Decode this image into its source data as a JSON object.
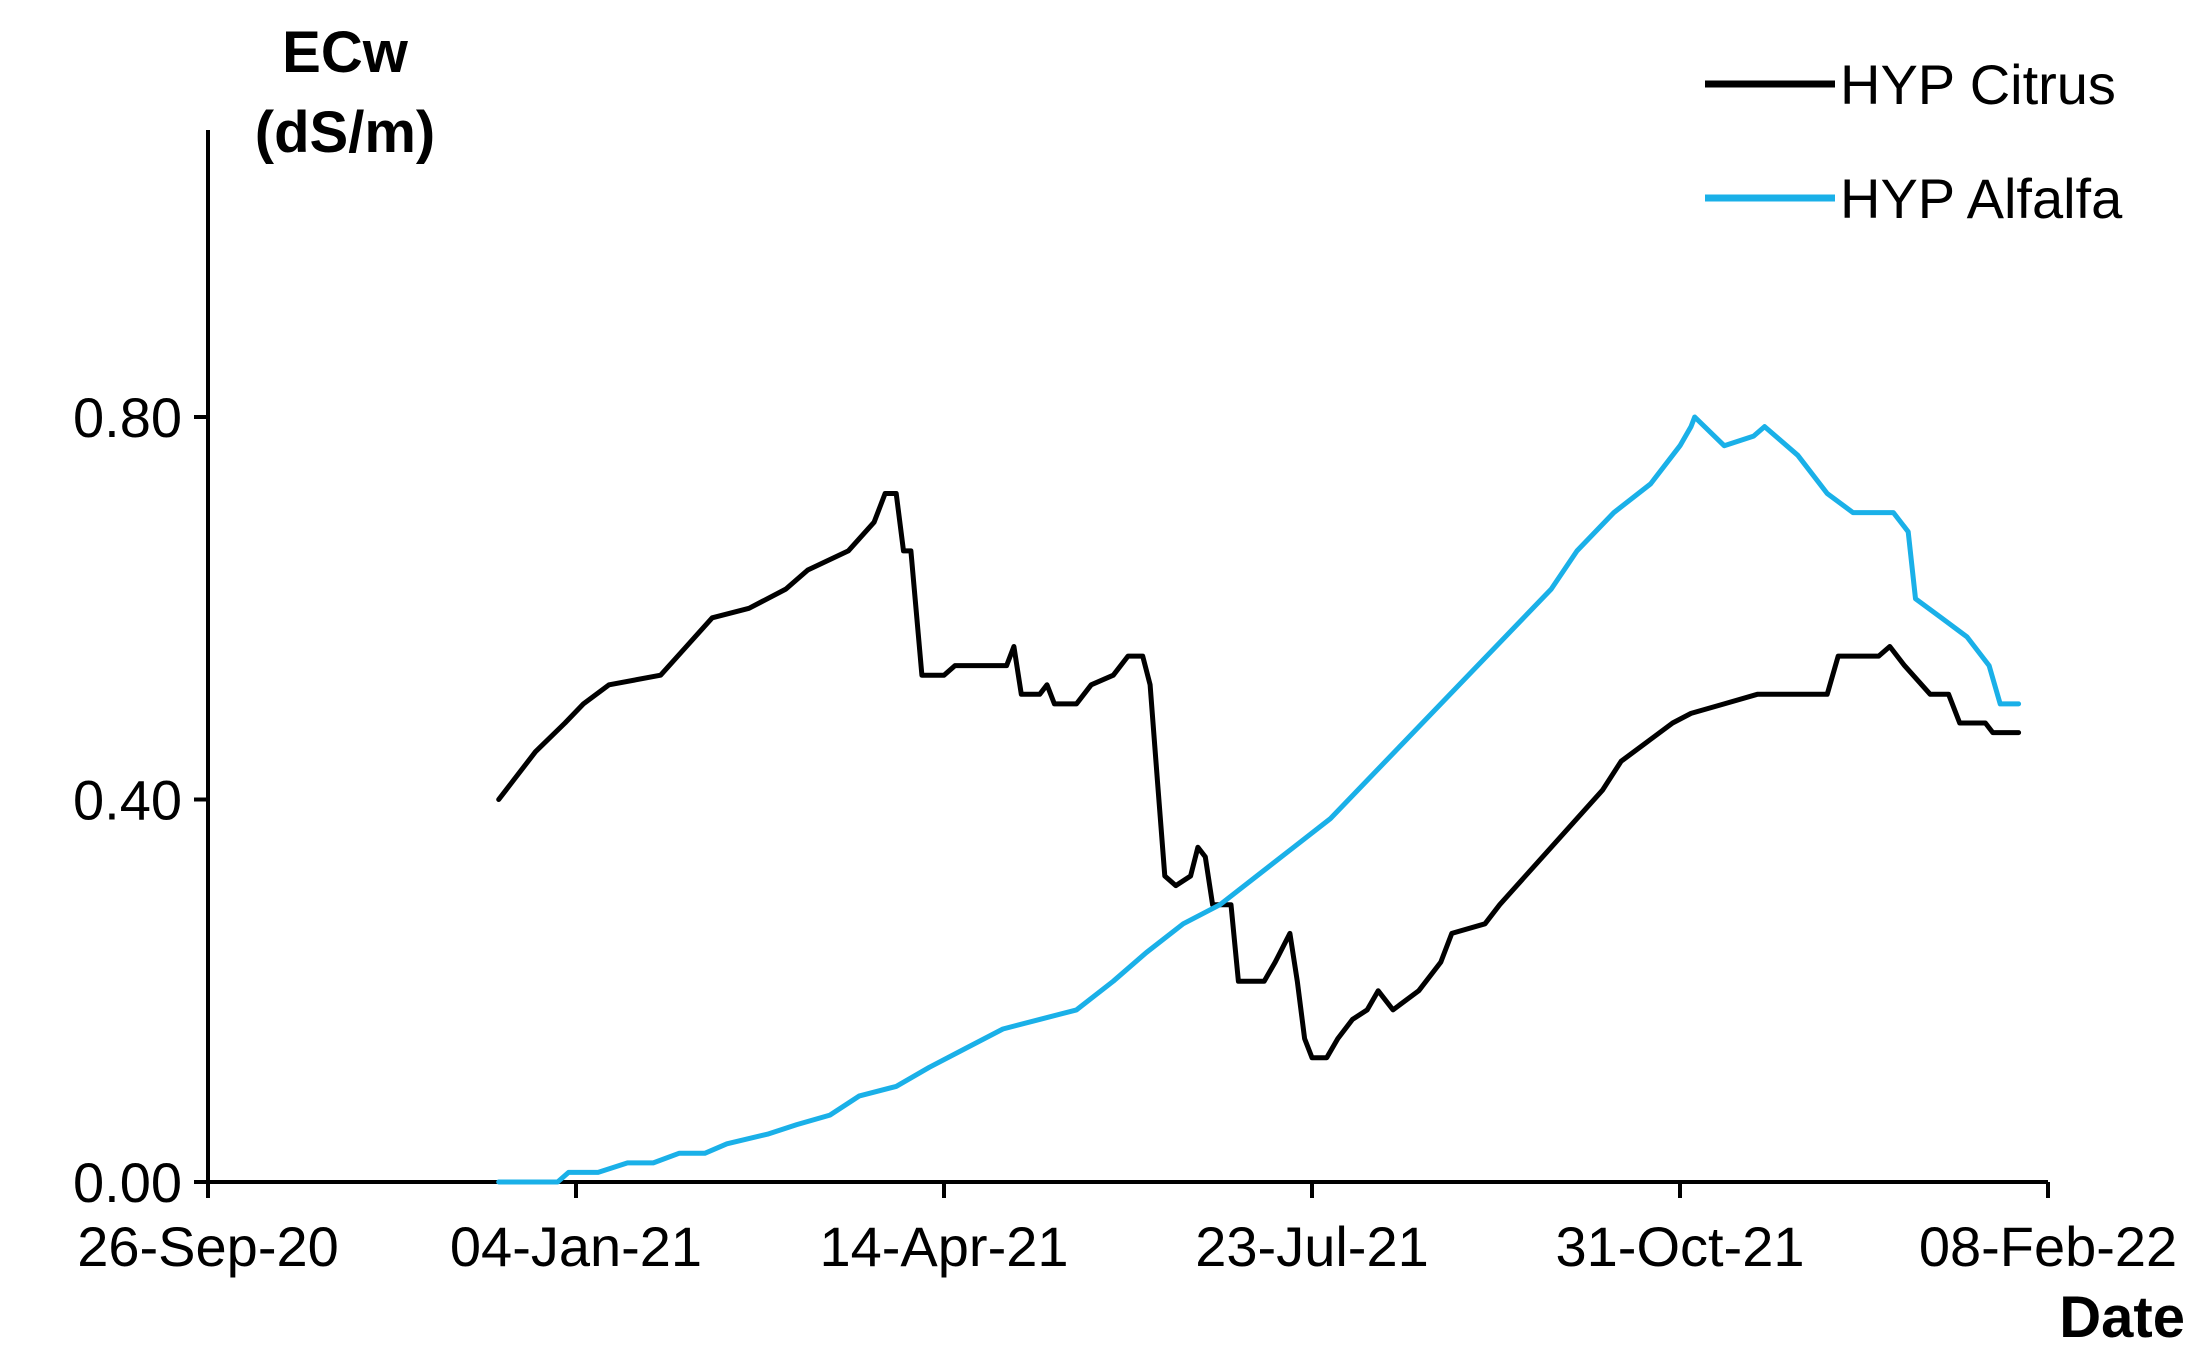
{
  "chart_data": {
    "type": "line",
    "title": "",
    "ylabel": [
      "ECw",
      "(dS/m)"
    ],
    "xlabel": "Date",
    "ylim": [
      0,
      1.0
    ],
    "yticks": [
      0.0,
      0.4,
      0.8
    ],
    "ytick_labels": [
      "0.00",
      "0.40",
      "0.80"
    ],
    "xlim": [
      "2020-09-26",
      "2022-02-08"
    ],
    "xticks": [
      "2020-09-26",
      "2021-01-04",
      "2021-04-14",
      "2021-07-23",
      "2021-10-31",
      "2022-02-08"
    ],
    "xtick_labels": [
      "26-Sep-20",
      "04-Jan-21",
      "14-Apr-21",
      "23-Jul-21",
      "31-Oct-21",
      "08-Feb-22"
    ],
    "grid": false,
    "legend_position": "top-right",
    "series": [
      {
        "name": "HYP Citrus",
        "color": "#000000",
        "points": [
          [
            "2020-12-14",
            0.4
          ],
          [
            "2020-12-18",
            0.42
          ],
          [
            "2020-12-24",
            0.45
          ],
          [
            "2021-01-01",
            0.48
          ],
          [
            "2021-01-06",
            0.5
          ],
          [
            "2021-01-13",
            0.52
          ],
          [
            "2021-01-27",
            0.53
          ],
          [
            "2021-02-03",
            0.56
          ],
          [
            "2021-02-10",
            0.59
          ],
          [
            "2021-02-20",
            0.6
          ],
          [
            "2021-03-02",
            0.62
          ],
          [
            "2021-03-08",
            0.64
          ],
          [
            "2021-03-19",
            0.66
          ],
          [
            "2021-03-26",
            0.69
          ],
          [
            "2021-03-29",
            0.72
          ],
          [
            "2021-04-01",
            0.72
          ],
          [
            "2021-04-03",
            0.66
          ],
          [
            "2021-04-05",
            0.66
          ],
          [
            "2021-04-08",
            0.53
          ],
          [
            "2021-04-14",
            0.53
          ],
          [
            "2021-04-17",
            0.54
          ],
          [
            "2021-05-01",
            0.54
          ],
          [
            "2021-05-03",
            0.56
          ],
          [
            "2021-05-05",
            0.51
          ],
          [
            "2021-05-10",
            0.51
          ],
          [
            "2021-05-12",
            0.52
          ],
          [
            "2021-05-14",
            0.5
          ],
          [
            "2021-05-20",
            0.5
          ],
          [
            "2021-05-24",
            0.52
          ],
          [
            "2021-05-30",
            0.53
          ],
          [
            "2021-06-03",
            0.55
          ],
          [
            "2021-06-07",
            0.55
          ],
          [
            "2021-06-09",
            0.52
          ],
          [
            "2021-06-11",
            0.42
          ],
          [
            "2021-06-13",
            0.32
          ],
          [
            "2021-06-16",
            0.31
          ],
          [
            "2021-06-20",
            0.32
          ],
          [
            "2021-06-22",
            0.35
          ],
          [
            "2021-06-24",
            0.34
          ],
          [
            "2021-06-26",
            0.29
          ],
          [
            "2021-07-01",
            0.29
          ],
          [
            "2021-07-03",
            0.21
          ],
          [
            "2021-07-10",
            0.21
          ],
          [
            "2021-07-13",
            0.23
          ],
          [
            "2021-07-17",
            0.26
          ],
          [
            "2021-07-19",
            0.21
          ],
          [
            "2021-07-21",
            0.15
          ],
          [
            "2021-07-23",
            0.13
          ],
          [
            "2021-07-27",
            0.13
          ],
          [
            "2021-07-30",
            0.15
          ],
          [
            "2021-08-03",
            0.17
          ],
          [
            "2021-08-07",
            0.18
          ],
          [
            "2021-08-10",
            0.2
          ],
          [
            "2021-08-14",
            0.18
          ],
          [
            "2021-08-21",
            0.2
          ],
          [
            "2021-08-27",
            0.23
          ],
          [
            "2021-08-30",
            0.26
          ],
          [
            "2021-09-08",
            0.27
          ],
          [
            "2021-09-12",
            0.29
          ],
          [
            "2021-09-19",
            0.32
          ],
          [
            "2021-09-26",
            0.35
          ],
          [
            "2021-10-03",
            0.38
          ],
          [
            "2021-10-10",
            0.41
          ],
          [
            "2021-10-15",
            0.44
          ],
          [
            "2021-10-22",
            0.46
          ],
          [
            "2021-10-29",
            0.48
          ],
          [
            "2021-11-03",
            0.49
          ],
          [
            "2021-11-12",
            0.5
          ],
          [
            "2021-11-21",
            0.51
          ],
          [
            "2021-12-10",
            0.51
          ],
          [
            "2021-12-13",
            0.55
          ],
          [
            "2021-12-24",
            0.55
          ],
          [
            "2021-12-27",
            0.56
          ],
          [
            "2021-12-31",
            0.54
          ],
          [
            "2022-01-07",
            0.51
          ],
          [
            "2022-01-12",
            0.51
          ],
          [
            "2022-01-15",
            0.48
          ],
          [
            "2022-01-22",
            0.48
          ],
          [
            "2022-01-24",
            0.47
          ],
          [
            "2022-01-31",
            0.47
          ]
        ]
      },
      {
        "name": "HYP Alfalfa",
        "color": "#1AB0E8",
        "points": [
          [
            "2020-12-14",
            0.0
          ],
          [
            "2020-12-30",
            0.0
          ],
          [
            "2021-01-02",
            0.01
          ],
          [
            "2021-01-10",
            0.01
          ],
          [
            "2021-01-18",
            0.02
          ],
          [
            "2021-01-25",
            0.02
          ],
          [
            "2021-02-01",
            0.03
          ],
          [
            "2021-02-08",
            0.03
          ],
          [
            "2021-02-14",
            0.04
          ],
          [
            "2021-02-25",
            0.05
          ],
          [
            "2021-03-05",
            0.06
          ],
          [
            "2021-03-14",
            0.07
          ],
          [
            "2021-03-22",
            0.09
          ],
          [
            "2021-04-01",
            0.1
          ],
          [
            "2021-04-10",
            0.12
          ],
          [
            "2021-04-20",
            0.14
          ],
          [
            "2021-04-30",
            0.16
          ],
          [
            "2021-05-10",
            0.17
          ],
          [
            "2021-05-20",
            0.18
          ],
          [
            "2021-05-30",
            0.21
          ],
          [
            "2021-06-08",
            0.24
          ],
          [
            "2021-06-18",
            0.27
          ],
          [
            "2021-06-28",
            0.29
          ],
          [
            "2021-07-08",
            0.32
          ],
          [
            "2021-07-18",
            0.35
          ],
          [
            "2021-07-28",
            0.38
          ],
          [
            "2021-08-07",
            0.42
          ],
          [
            "2021-08-17",
            0.46
          ],
          [
            "2021-08-27",
            0.5
          ],
          [
            "2021-09-06",
            0.54
          ],
          [
            "2021-09-16",
            0.58
          ],
          [
            "2021-09-26",
            0.62
          ],
          [
            "2021-10-03",
            0.66
          ],
          [
            "2021-10-13",
            0.7
          ],
          [
            "2021-10-23",
            0.73
          ],
          [
            "2021-10-31",
            0.77
          ],
          [
            "2021-11-03",
            0.79
          ],
          [
            "2021-11-04",
            0.8
          ],
          [
            "2021-11-12",
            0.77
          ],
          [
            "2021-11-20",
            0.78
          ],
          [
            "2021-11-23",
            0.79
          ],
          [
            "2021-12-02",
            0.76
          ],
          [
            "2021-12-10",
            0.72
          ],
          [
            "2021-12-17",
            0.7
          ],
          [
            "2021-12-28",
            0.7
          ],
          [
            "2022-01-01",
            0.68
          ],
          [
            "2022-01-03",
            0.61
          ],
          [
            "2022-01-10",
            0.59
          ],
          [
            "2022-01-17",
            0.57
          ],
          [
            "2022-01-23",
            0.54
          ],
          [
            "2022-01-26",
            0.5
          ],
          [
            "2022-01-31",
            0.5
          ]
        ]
      }
    ]
  }
}
